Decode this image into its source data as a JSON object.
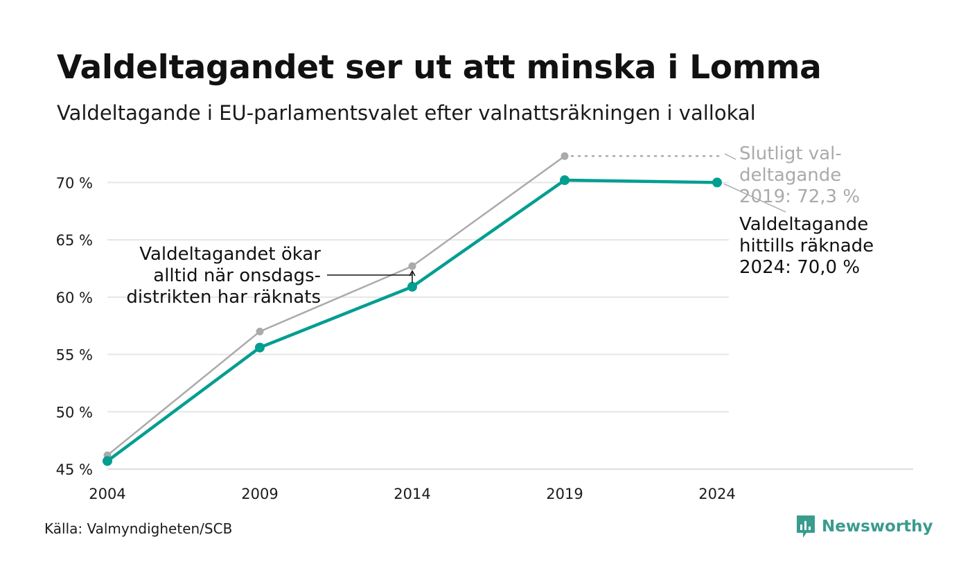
{
  "header": {
    "title": "Valdeltagandet ser ut att minska i Lomma",
    "subtitle": "Valdeltagande i EU-parlamentsvalet efter valnattsräkningen i vallokal"
  },
  "footer": {
    "source": "Källa: Valmyndigheten/SCB",
    "brand_name": "Newsworthy",
    "brand_icon": "newsworthy-logo-icon"
  },
  "colors": {
    "preliminary": "#009e91",
    "final": "#aaaaaa",
    "grid": "#e6e6e6",
    "text": "#1a1a1a",
    "brand": "#3a9b8f"
  },
  "chart_data": {
    "type": "line",
    "categories": [
      "2004",
      "2009",
      "2014",
      "2019",
      "2024"
    ],
    "ylim": [
      45,
      72.5
    ],
    "yticks": [
      45,
      50,
      55,
      60,
      65,
      70
    ],
    "ytick_labels": [
      "45 %",
      "50 %",
      "55 %",
      "60 %",
      "65 %",
      "70 %"
    ],
    "grid": true,
    "series": [
      {
        "key": "final",
        "values": [
          46.2,
          57.0,
          62.7,
          72.3,
          null
        ],
        "color": "#aaaaaa"
      },
      {
        "key": "preliminary",
        "values": [
          45.7,
          55.6,
          60.9,
          70.2,
          70.0
        ],
        "color": "#009e91"
      }
    ],
    "annotations": {
      "final_label": [
        "Slutligt val-",
        "deltagande",
        "2019: 72,3 %"
      ],
      "current_label": [
        "Valdeltagande",
        "hittills räknade",
        "2024: 70,0 %"
      ],
      "note": [
        "Valdeltagandet ökar",
        "alltid när onsdags-",
        "distrikten har räknats"
      ]
    }
  }
}
